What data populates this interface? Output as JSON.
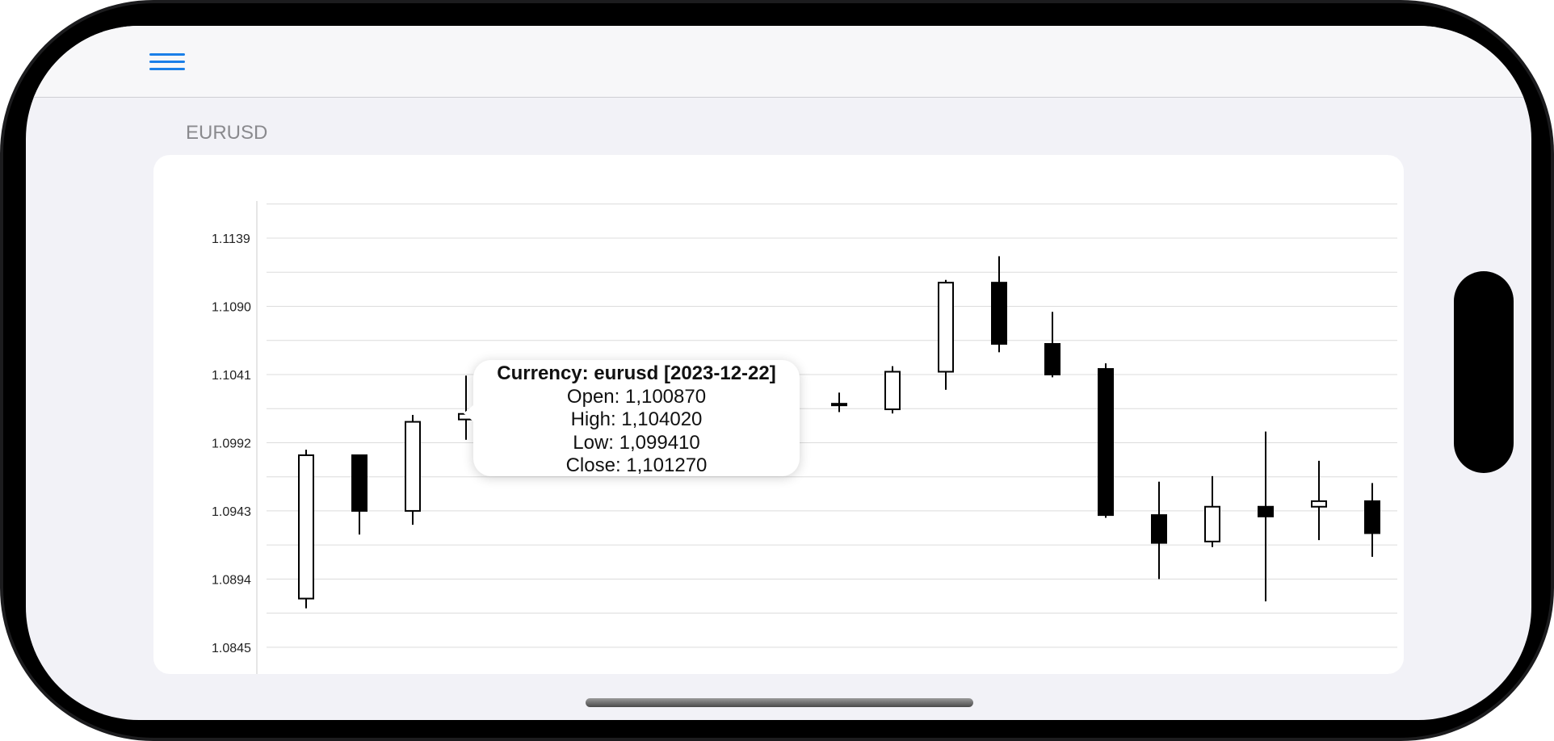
{
  "nav": {
    "menu_icon": "hamburger-menu-icon"
  },
  "colors": {
    "accent": "#1a7fe8",
    "bullish_fill": "#ffffff",
    "bearish_fill": "#000000",
    "grid": "#dcdcdc"
  },
  "chart_data": {
    "type": "candlestick",
    "title": "EURUSD",
    "y_ticks": [
      1.1139,
      1.109,
      1.1041,
      1.0992,
      1.0943,
      1.0894,
      1.0845
    ],
    "ylim": [
      1.082,
      1.1168
    ],
    "grid": true,
    "candles": [
      {
        "open": 1.088,
        "high": 1.0987,
        "low": 1.0873,
        "close": 1.0983
      },
      {
        "open": 1.0983,
        "high": 1.0983,
        "low": 1.0926,
        "close": 1.0943
      },
      {
        "open": 1.0943,
        "high": 1.1012,
        "low": 1.0933,
        "close": 1.1007
      },
      {
        "open": 1.10087,
        "high": 1.10402,
        "low": 1.09941,
        "close": 1.10127
      },
      null,
      null,
      null,
      null,
      null,
      null,
      {
        "open": 1.102,
        "high": 1.1028,
        "low": 1.1014,
        "close": 1.102
      },
      {
        "open": 1.1016,
        "high": 1.1047,
        "low": 1.1013,
        "close": 1.1043
      },
      {
        "open": 1.1043,
        "high": 1.1109,
        "low": 1.103,
        "close": 1.1107
      },
      {
        "open": 1.1107,
        "high": 1.1126,
        "low": 1.1057,
        "close": 1.1063
      },
      {
        "open": 1.1063,
        "high": 1.1086,
        "low": 1.1039,
        "close": 1.1041
      },
      {
        "open": 1.1045,
        "high": 1.1049,
        "low": 1.0938,
        "close": 1.094
      },
      {
        "open": 1.094,
        "high": 1.0964,
        "low": 1.0894,
        "close": 1.092
      },
      {
        "open": 1.0921,
        "high": 1.0968,
        "low": 1.0917,
        "close": 1.0946
      },
      {
        "open": 1.0946,
        "high": 1.1,
        "low": 1.0878,
        "close": 1.0939
      },
      {
        "open": 1.0946,
        "high": 1.0979,
        "low": 1.0922,
        "close": 1.095
      },
      {
        "open": 1.095,
        "high": 1.0963,
        "low": 1.091,
        "close": 1.0927
      }
    ]
  },
  "tooltip": {
    "title": "Currency: eurusd [2023-12-22]",
    "open": "Open: 1,100870",
    "high": "High: 1,104020",
    "low": "Low: 1,099410",
    "close": "Close: 1,101270"
  }
}
